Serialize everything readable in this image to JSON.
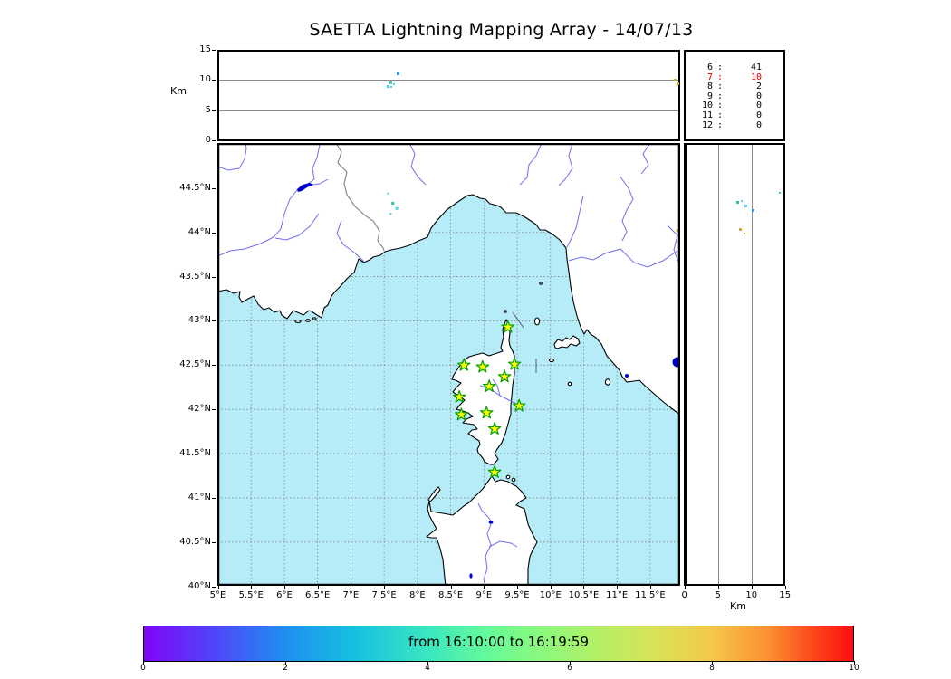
{
  "title": "SAETTA Lightning Mapping Array - 14/07/13",
  "colors": {
    "sea": "#b5ecf8",
    "land": "#ffffff",
    "coast": "#000000",
    "river": "#6f6fe8",
    "country_border": "#808080",
    "lake": "#0000cc",
    "grid": "#808080",
    "panel_gridline": "#8a8a8a",
    "star_fill": "#ffff00",
    "star_edge": "#00a000",
    "highlight_red": "#e60000"
  },
  "altitude_panel": {
    "axis_label": "Km",
    "ticks": [
      {
        "km": 0,
        "label": "0"
      },
      {
        "km": 5,
        "label": "5"
      },
      {
        "km": 10,
        "label": "10"
      },
      {
        "km": 15,
        "label": "15"
      }
    ],
    "gridlines_km": [
      5,
      10
    ]
  },
  "counts_panel": {
    "rows": [
      {
        "km": "6",
        "count": "41",
        "highlight": false
      },
      {
        "km": "7",
        "count": "10",
        "highlight": true
      },
      {
        "km": "8",
        "count": "2",
        "highlight": false
      },
      {
        "km": "9",
        "count": "0",
        "highlight": false
      },
      {
        "km": "10",
        "count": "0",
        "highlight": false
      },
      {
        "km": "11",
        "count": "0",
        "highlight": false
      },
      {
        "km": "12",
        "count": "0",
        "highlight": false
      }
    ]
  },
  "map_panel": {
    "lon_ticks": [
      {
        "lon": 5,
        "label": "5°E"
      },
      {
        "lon": 5.5,
        "label": "5.5°E"
      },
      {
        "lon": 6,
        "label": "6°E"
      },
      {
        "lon": 6.5,
        "label": "6.5°E"
      },
      {
        "lon": 7,
        "label": "7°E"
      },
      {
        "lon": 7.5,
        "label": "7.5°E"
      },
      {
        "lon": 8,
        "label": "8°E"
      },
      {
        "lon": 8.5,
        "label": "8.5°E"
      },
      {
        "lon": 9,
        "label": "9°E"
      },
      {
        "lon": 9.5,
        "label": "9.5°E"
      },
      {
        "lon": 10,
        "label": "10°E"
      },
      {
        "lon": 10.5,
        "label": "10.5°E"
      },
      {
        "lon": 11,
        "label": "11°E"
      },
      {
        "lon": 11.5,
        "label": "11.5°E"
      }
    ],
    "lat_ticks": [
      {
        "lat": 44.5,
        "label": "44.5°N"
      },
      {
        "lat": 44,
        "label": "44°N"
      },
      {
        "lat": 43.5,
        "label": "43.5°N"
      },
      {
        "lat": 43,
        "label": "43°N"
      },
      {
        "lat": 42.5,
        "label": "42.5°N"
      },
      {
        "lat": 42,
        "label": "42°N"
      },
      {
        "lat": 41.5,
        "label": "41.5°N"
      },
      {
        "lat": 41,
        "label": "41°N"
      },
      {
        "lat": 40.5,
        "label": "40.5°N"
      },
      {
        "lat": 40,
        "label": "40°N"
      }
    ]
  },
  "right_panel": {
    "axis_label": "Km",
    "ticks": [
      {
        "km": 0,
        "label": "0"
      },
      {
        "km": 5,
        "label": "5"
      },
      {
        "km": 10,
        "label": "10"
      },
      {
        "km": 15,
        "label": "15"
      }
    ],
    "gridlines_km": [
      5,
      10
    ]
  },
  "colorbar": {
    "label": "from 16:10:00 to 16:19:59",
    "ticks": [
      {
        "v": 0,
        "label": "0"
      },
      {
        "v": 2,
        "label": "2"
      },
      {
        "v": 4,
        "label": "4"
      },
      {
        "v": 6,
        "label": "6"
      },
      {
        "v": 8,
        "label": "8"
      },
      {
        "v": 10,
        "label": "10"
      }
    ],
    "range": [
      0,
      10
    ]
  },
  "chart_data": {
    "type": "scatter",
    "title": "SAETTA Lightning Mapping Array - 14/07/13",
    "time_window": "from 16:10:00 to 16:19:59",
    "panels": {
      "top": {
        "x": "longitude_deg_E",
        "x_range": [
          5,
          11.96
        ],
        "y": "altitude_km",
        "y_range": [
          0,
          15
        ],
        "gridlines_km": [
          5,
          10
        ]
      },
      "map": {
        "x": "longitude_deg_E",
        "x_range": [
          5,
          11.96
        ],
        "y": "latitude_deg_N",
        "y_range": [
          40,
          45.01
        ],
        "grid_step_deg": 0.5
      },
      "right": {
        "x": "altitude_km",
        "x_range": [
          0,
          15
        ],
        "y": "latitude_deg_N",
        "y_range": [
          40,
          45.01
        ],
        "gridlines_km": [
          5,
          10
        ]
      }
    },
    "source_counts_by_altitude_km": {
      "6": 41,
      "7": 10,
      "8": 2,
      "9": 0,
      "10": 0,
      "11": 0,
      "12": 0
    },
    "stations_lon_lat": [
      [
        9.36,
        42.93
      ],
      [
        8.7,
        42.5
      ],
      [
        8.98,
        42.48
      ],
      [
        9.46,
        42.51
      ],
      [
        9.31,
        42.37
      ],
      [
        9.08,
        42.26
      ],
      [
        8.63,
        42.14
      ],
      [
        9.53,
        42.04
      ],
      [
        9.04,
        41.96
      ],
      [
        8.66,
        41.94
      ],
      [
        9.16,
        41.78
      ],
      [
        9.16,
        41.29
      ]
    ],
    "sources_lon_alt": [
      {
        "lon": 7.71,
        "alt": 11.1,
        "color": "#3a96f0",
        "size": 3
      },
      {
        "lon": 7.6,
        "alt": 9.6,
        "color": "#35d8b8",
        "size": 3
      },
      {
        "lon": 7.645,
        "alt": 9.35,
        "color": "#48d8e8",
        "size": 2
      },
      {
        "lon": 7.565,
        "alt": 9.0,
        "color": "#40cce4",
        "size": 3
      },
      {
        "lon": 7.61,
        "alt": 8.8,
        "color": "#44d4ec",
        "size": 2
      },
      {
        "lon": 11.88,
        "alt": 10.0,
        "color": "#c8b23c",
        "size": 3
      },
      {
        "lon": 11.92,
        "alt": 9.4,
        "color": "#d0a83c",
        "size": 3
      }
    ],
    "sources_lon_lat": [
      {
        "lon": 7.56,
        "lat": 44.44,
        "color": "#48d0e0",
        "size": 2
      },
      {
        "lon": 7.63,
        "lat": 44.33,
        "color": "#2fbf9f",
        "size": 3
      },
      {
        "lon": 7.69,
        "lat": 44.27,
        "color": "#48d4e8",
        "size": 3
      },
      {
        "lon": 7.6,
        "lat": 44.21,
        "color": "#40cce4",
        "size": 2
      },
      {
        "lon": 11.91,
        "lat": 44.02,
        "color": "#c8b23c",
        "size": 3
      }
    ],
    "sources_alt_lat": [
      {
        "alt": 8.0,
        "lat": 44.34,
        "color": "#2fbf9f",
        "size": 3
      },
      {
        "alt": 8.6,
        "lat": 44.36,
        "color": "#48d4e8",
        "size": 2
      },
      {
        "alt": 9.1,
        "lat": 44.3,
        "color": "#40cce4",
        "size": 3
      },
      {
        "alt": 10.2,
        "lat": 44.25,
        "color": "#3a96f0",
        "size": 3
      },
      {
        "alt": 14.2,
        "lat": 44.45,
        "color": "#30d0b8",
        "size": 2
      },
      {
        "alt": 8.4,
        "lat": 44.03,
        "color": "#c8a83c",
        "size": 3
      },
      {
        "alt": 8.9,
        "lat": 43.99,
        "color": "#d8b04a",
        "size": 2
      }
    ],
    "colorbar": {
      "range": [
        0,
        10
      ],
      "ticks": [
        0,
        2,
        4,
        6,
        8,
        10
      ],
      "colormap": "rainbow",
      "label": "from 16:10:00 to 16:19:59"
    }
  }
}
